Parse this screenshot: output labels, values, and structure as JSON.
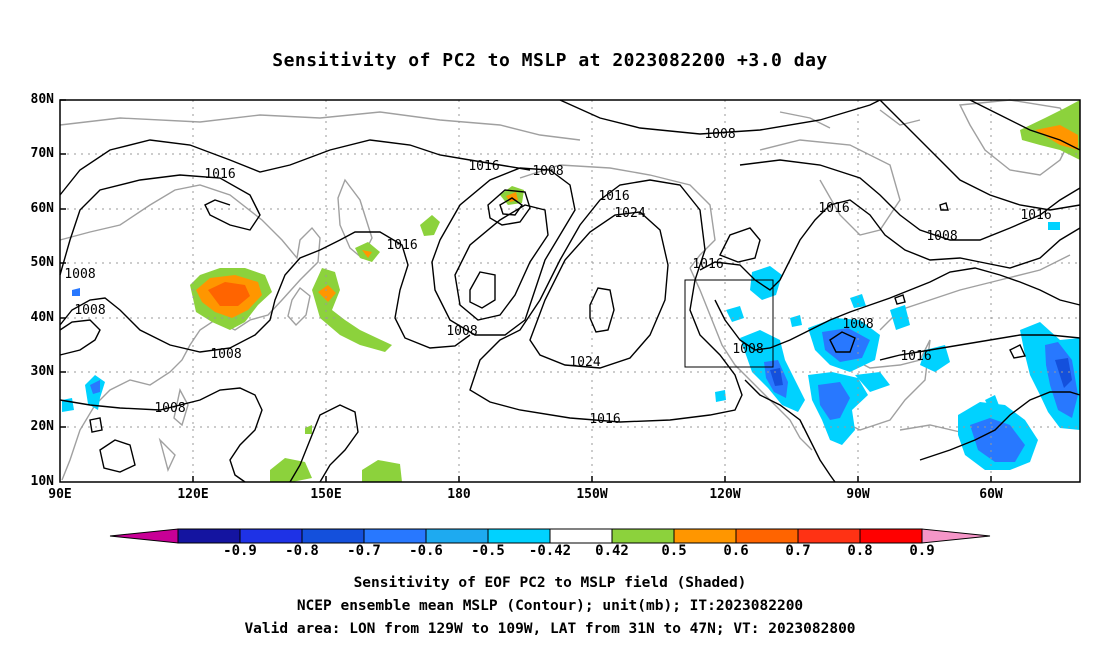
{
  "title": "Sensitivity of PC2 to MSLP at 2023082200 +3.0 day",
  "lat_labels": [
    "80N",
    "70N",
    "60N",
    "50N",
    "40N",
    "30N",
    "20N",
    "10N"
  ],
  "lon_labels": [
    "90E",
    "120E",
    "150E",
    "180",
    "150W",
    "120W",
    "90W",
    "60W"
  ],
  "contour_labels": [
    "1016",
    "1008",
    "1016",
    "1008",
    "1016",
    "1024",
    "1016",
    "1008",
    "1016",
    "1008",
    "1016",
    "1008",
    "1008",
    "1008",
    "1008",
    "1016",
    "1016",
    "1008",
    "1024",
    "1008",
    "1016",
    "1008",
    "1016"
  ],
  "colorbar": {
    "labels": [
      "-0.9",
      "-0.8",
      "-0.7",
      "-0.6",
      "-0.5",
      "-0.42",
      "0.42",
      "0.5",
      "0.6",
      "0.7",
      "0.8",
      "0.9"
    ],
    "colors": [
      "#c80096",
      "#1414a0",
      "#1e32e6",
      "#1450dc",
      "#2878ff",
      "#1eaaf0",
      "#00d2ff",
      "#ffffff",
      "#8cd23c",
      "#ff9600",
      "#ff6400",
      "#ff3214",
      "#ff0000",
      "#f596c8"
    ]
  },
  "footer": {
    "line1": "Sensitivity of EOF PC2 to MSLP field (Shaded)",
    "line2": "NCEP ensemble mean MSLP (Contour); unit(mb); IT:2023082200",
    "line3": "Valid area: LON from 129W to 109W, LAT from 31N to 47N; VT: 2023082800"
  },
  "colors": {
    "coast": "#a0a0a0",
    "contour": "#000000",
    "grid": "#999999"
  }
}
